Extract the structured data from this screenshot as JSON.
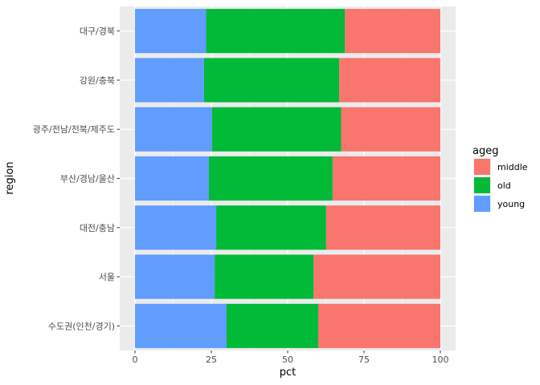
{
  "chart_data": {
    "type": "bar",
    "orientation": "horizontal",
    "stacked": true,
    "xlabel": "pct",
    "ylabel": "region",
    "xlim": [
      0,
      100
    ],
    "xticks": [
      0,
      25,
      50,
      75,
      100
    ],
    "grid": true,
    "legend": {
      "title": "ageg",
      "position": "right"
    },
    "categories": [
      "대구/경북",
      "강원/충북",
      "광주/전남/전북/제주도",
      "부산/경남/울산",
      "대전/충남",
      "서울",
      "수도권(인천/경기)"
    ],
    "series": [
      {
        "name": "young",
        "color": "#619CFF",
        "values": [
          23.3,
          22.6,
          25.2,
          24.2,
          26.6,
          26.1,
          30.0
        ]
      },
      {
        "name": "old",
        "color": "#00BA38",
        "values": [
          45.4,
          44.3,
          42.3,
          40.5,
          36.0,
          32.4,
          30.0
        ]
      },
      {
        "name": "middle",
        "color": "#F8766D",
        "values": [
          31.3,
          33.1,
          32.5,
          35.3,
          37.4,
          41.5,
          40.0
        ]
      }
    ],
    "legend_order": [
      "middle",
      "old",
      "young"
    ]
  }
}
